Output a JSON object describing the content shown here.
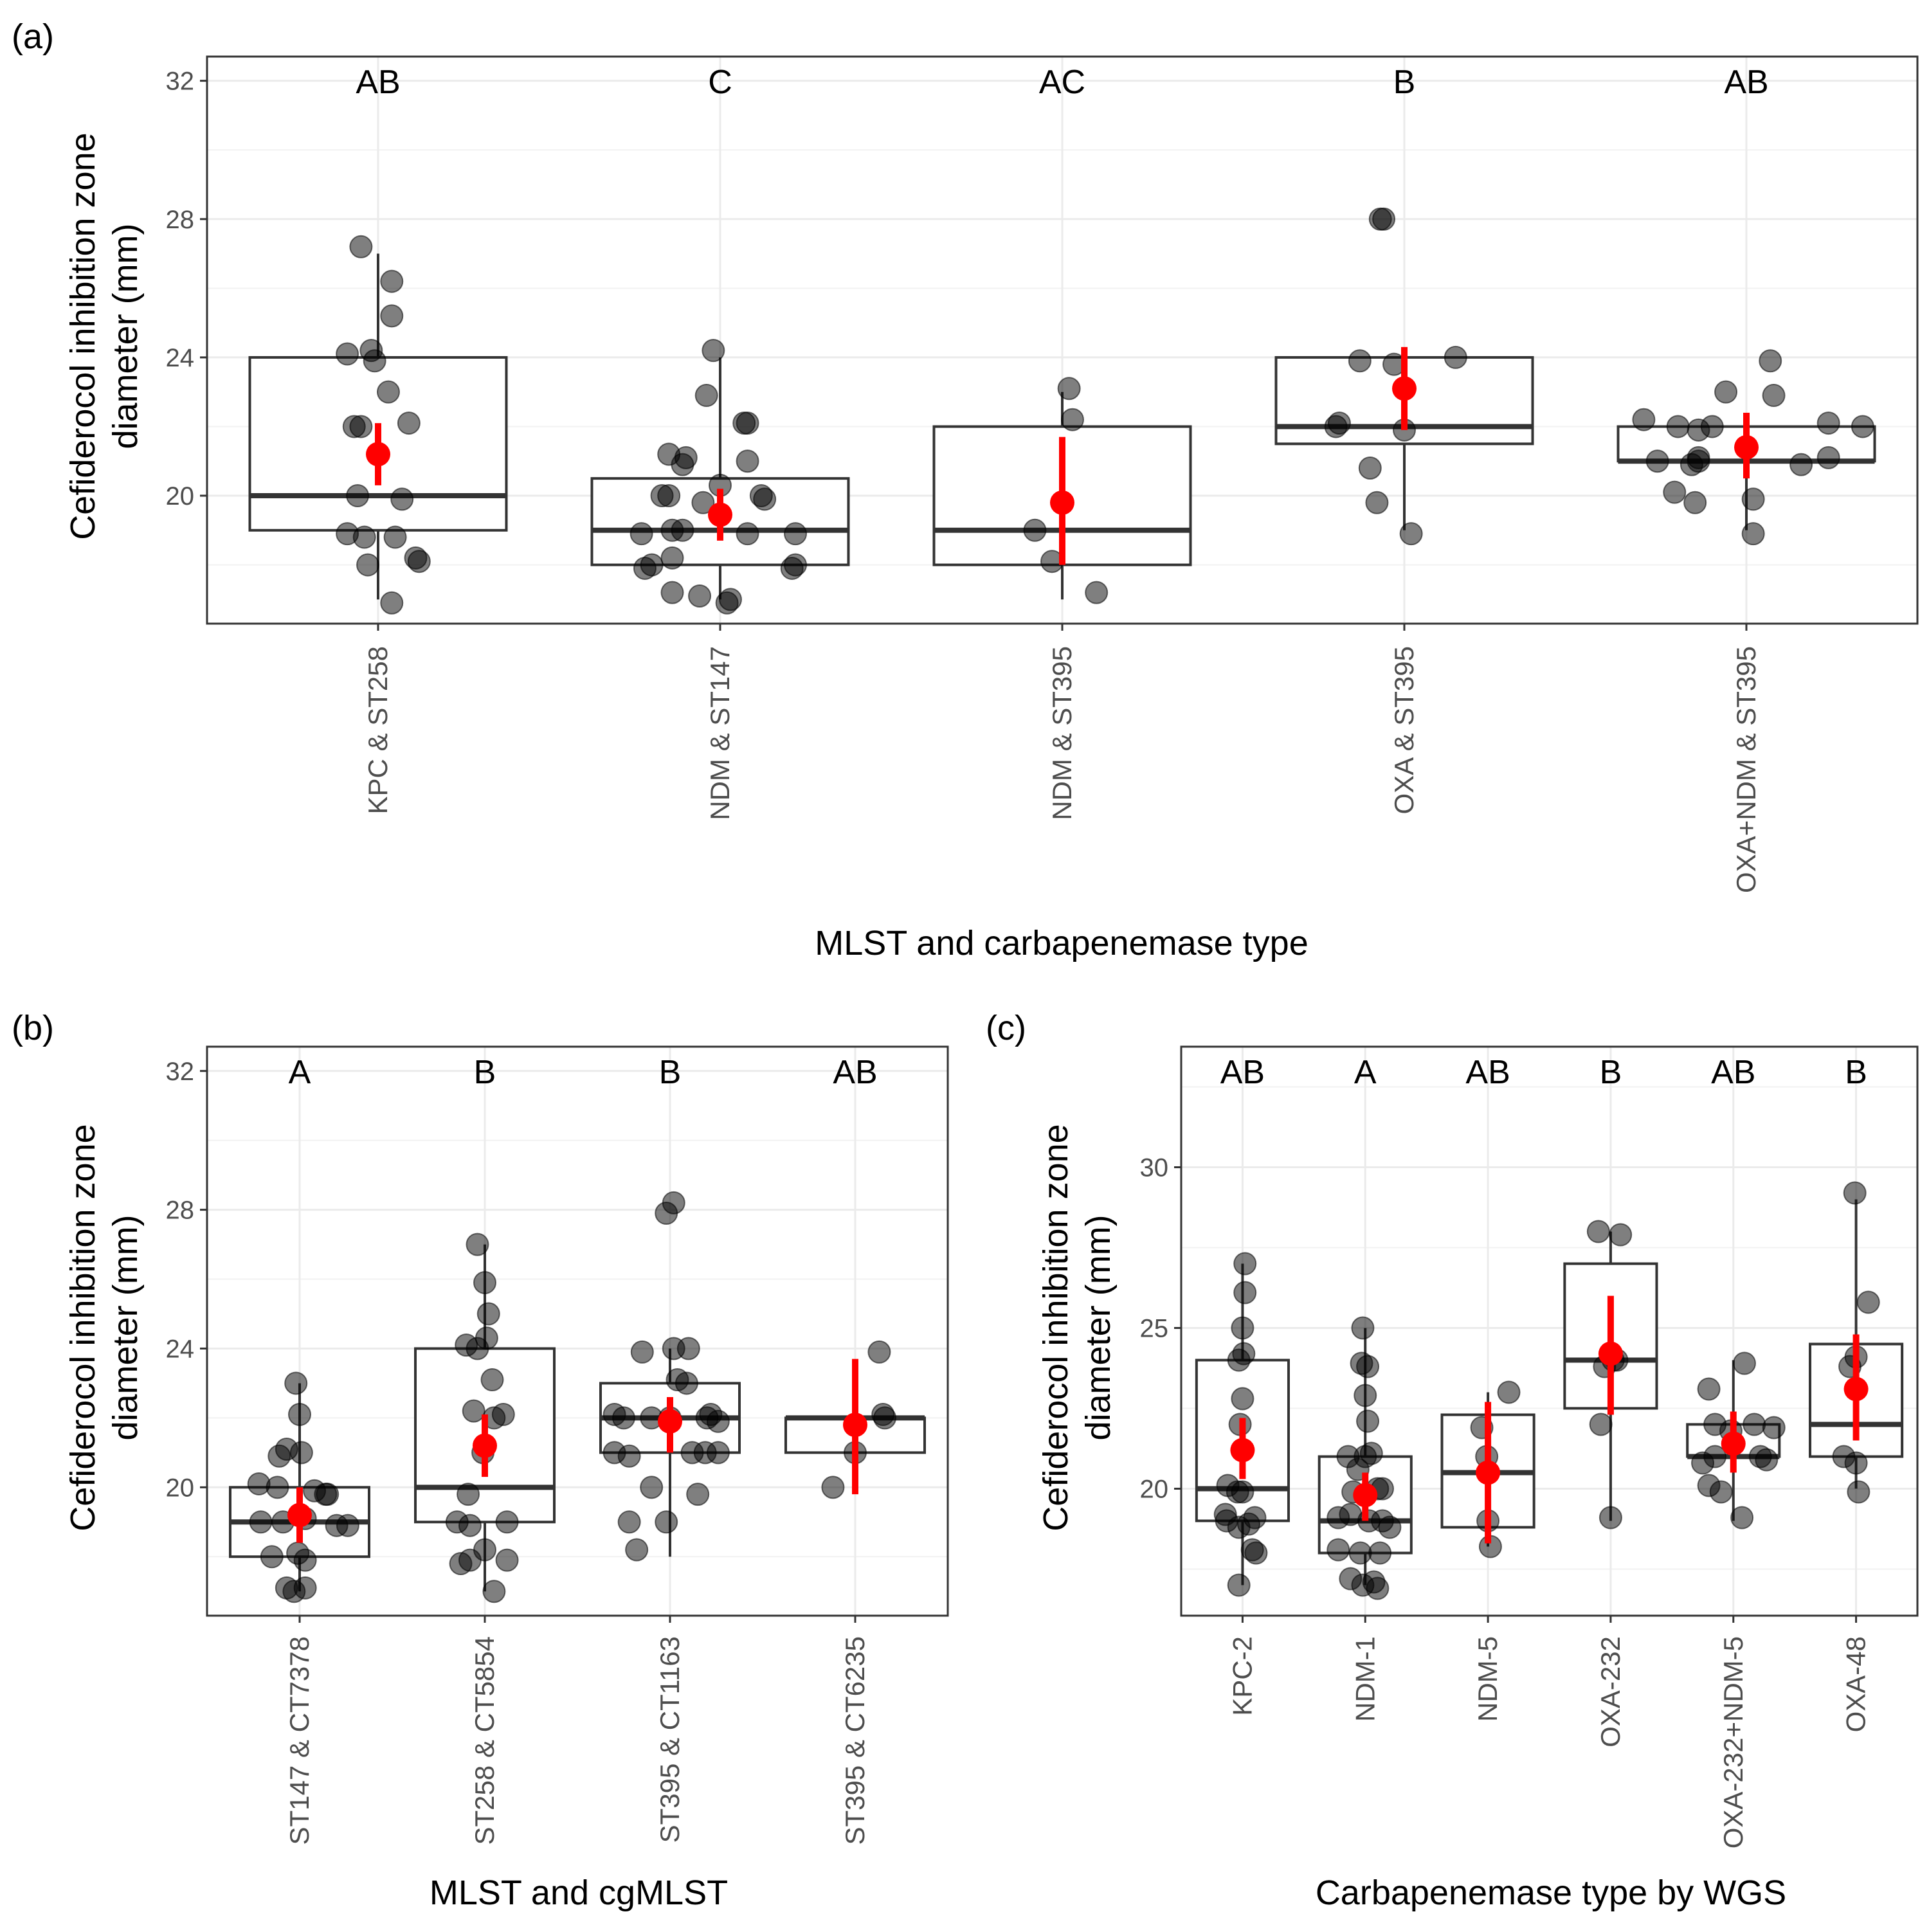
{
  "chart_data": [
    {
      "id": "a",
      "type": "boxplot",
      "panel_label": "(a)",
      "xlabel": "MLST and carbapenemase type",
      "ylabel_lines": [
        "Cefiderocol inhibition zone",
        "diameter (mm)"
      ],
      "ylim": [
        16.3,
        32.7
      ],
      "yticks": [
        20,
        24,
        28,
        32
      ],
      "grid": true,
      "categories": [
        "KPC & ST258",
        "NDM & ST147",
        "NDM & ST395",
        "OXA & ST395",
        "OXA+NDM & ST395"
      ],
      "letters": [
        "AB",
        "C",
        "AC",
        "B",
        "AB"
      ],
      "boxes": [
        {
          "whisker_low": 17,
          "q1": 19,
          "median": 20,
          "q3": 24,
          "whisker_high": 27
        },
        {
          "whisker_low": 17,
          "q1": 18,
          "median": 19,
          "q3": 20.5,
          "whisker_high": 24
        },
        {
          "whisker_low": 17,
          "q1": 18,
          "median": 19,
          "q3": 22,
          "whisker_high": 23
        },
        {
          "whisker_low": 19,
          "q1": 21.5,
          "median": 22,
          "q3": 24,
          "whisker_high": 24
        },
        {
          "whisker_low": 19,
          "q1": 21,
          "median": 21,
          "q3": 22,
          "whisker_high": 22
        }
      ],
      "mean_ci": [
        {
          "mean": 21.2,
          "low": 20.3,
          "high": 22.1
        },
        {
          "mean": 19.45,
          "low": 18.7,
          "high": 20.2
        },
        {
          "mean": 19.8,
          "low": 18.0,
          "high": 21.7
        },
        {
          "mean": 23.1,
          "low": 21.9,
          "high": 24.3
        },
        {
          "mean": 21.4,
          "low": 20.5,
          "high": 22.4
        }
      ],
      "points": [
        [
          [
            -0.05,
            27.2
          ],
          [
            0.04,
            26.2
          ],
          [
            0.04,
            25.2
          ],
          [
            -0.09,
            24.1
          ],
          [
            -0.02,
            24.2
          ],
          [
            -0.01,
            23.9
          ],
          [
            0.03,
            23.0
          ],
          [
            -0.07,
            22.0
          ],
          [
            -0.05,
            22.0
          ],
          [
            0.09,
            22.1
          ],
          [
            -0.06,
            20.0
          ],
          [
            0.07,
            19.9
          ],
          [
            -0.09,
            18.9
          ],
          [
            -0.04,
            18.8
          ],
          [
            0.05,
            18.8
          ],
          [
            0.11,
            18.2
          ],
          [
            0.12,
            18.1
          ],
          [
            -0.03,
            18.0
          ],
          [
            0.04,
            16.9
          ]
        ],
        [
          [
            -0.02,
            24.2
          ],
          [
            -0.04,
            22.9
          ],
          [
            0.07,
            22.1
          ],
          [
            0.08,
            22.1
          ],
          [
            -0.15,
            21.2
          ],
          [
            -0.1,
            21.1
          ],
          [
            -0.11,
            20.9
          ],
          [
            0.08,
            21.0
          ],
          [
            -0.15,
            20.0
          ],
          [
            -0.17,
            20.0
          ],
          [
            0.0,
            20.3
          ],
          [
            0.12,
            20.0
          ],
          [
            0.13,
            19.9
          ],
          [
            -0.05,
            19.8
          ],
          [
            -0.23,
            18.9
          ],
          [
            -0.14,
            19.0
          ],
          [
            -0.11,
            19.0
          ],
          [
            0.08,
            18.9
          ],
          [
            0.22,
            18.9
          ],
          [
            -0.2,
            18.0
          ],
          [
            -0.22,
            17.9
          ],
          [
            -0.14,
            18.2
          ],
          [
            0.22,
            18.0
          ],
          [
            0.21,
            17.9
          ],
          [
            -0.14,
            17.2
          ],
          [
            -0.06,
            17.1
          ],
          [
            0.02,
            16.9
          ],
          [
            0.03,
            17.0
          ]
        ],
        [
          [
            0.02,
            23.1
          ],
          [
            0.03,
            22.2
          ],
          [
            -0.08,
            19.0
          ],
          [
            -0.03,
            18.1
          ],
          [
            0.1,
            17.2
          ]
        ],
        [
          [
            -0.07,
            28.0
          ],
          [
            -0.06,
            28.0
          ],
          [
            -0.13,
            23.9
          ],
          [
            -0.03,
            23.8
          ],
          [
            0.15,
            24.0
          ],
          [
            -0.19,
            22.1
          ],
          [
            -0.2,
            22.0
          ],
          [
            0.0,
            21.9
          ],
          [
            -0.1,
            20.8
          ],
          [
            -0.08,
            19.8
          ],
          [
            0.02,
            18.9
          ]
        ],
        [
          [
            0.07,
            23.9
          ],
          [
            -0.06,
            23.0
          ],
          [
            0.08,
            22.9
          ],
          [
            -0.3,
            22.2
          ],
          [
            -0.2,
            22.0
          ],
          [
            -0.14,
            21.9
          ],
          [
            -0.1,
            22.0
          ],
          [
            -0.14,
            21.1
          ],
          [
            0.24,
            22.1
          ],
          [
            0.34,
            22.0
          ],
          [
            -0.14,
            21.0
          ],
          [
            -0.26,
            21.0
          ],
          [
            -0.16,
            20.9
          ],
          [
            0.24,
            21.1
          ],
          [
            0.16,
            20.9
          ],
          [
            -0.21,
            20.1
          ],
          [
            0.02,
            19.9
          ],
          [
            -0.15,
            19.8
          ],
          [
            0.02,
            18.9
          ]
        ]
      ]
    },
    {
      "id": "b",
      "type": "boxplot",
      "panel_label": "(b)",
      "xlabel": "MLST and cgMLST",
      "ylabel_lines": [
        "Cefiderocol inhibition zone",
        "diameter (mm)"
      ],
      "ylim": [
        16.3,
        32.7
      ],
      "yticks": [
        20,
        24,
        28,
        32
      ],
      "grid": true,
      "categories": [
        "ST147 & CT7378",
        "ST258 & CT5854",
        "ST395 & CT1163",
        "ST395 & CT6235"
      ],
      "letters": [
        "A",
        "B",
        "B",
        "AB"
      ],
      "boxes": [
        {
          "whisker_low": 17,
          "q1": 18,
          "median": 19,
          "q3": 20,
          "whisker_high": 23
        },
        {
          "whisker_low": 17,
          "q1": 19,
          "median": 20,
          "q3": 24,
          "whisker_high": 27
        },
        {
          "whisker_low": 18,
          "q1": 21,
          "median": 22,
          "q3": 23,
          "whisker_high": 24
        },
        {
          "whisker_low": 20,
          "q1": 21,
          "median": 22,
          "q3": 22,
          "whisker_high": 22
        }
      ],
      "mean_ci": [
        {
          "mean": 19.2,
          "low": 18.4,
          "high": 20.0
        },
        {
          "mean": 21.2,
          "low": 20.3,
          "high": 22.1
        },
        {
          "mean": 21.9,
          "low": 21.0,
          "high": 22.6
        },
        {
          "mean": 21.8,
          "low": 19.8,
          "high": 23.7
        }
      ],
      "points": [
        [
          [
            -0.02,
            23.0
          ],
          [
            0.0,
            22.1
          ],
          [
            -0.11,
            20.9
          ],
          [
            -0.07,
            21.1
          ],
          [
            0.01,
            21.0
          ],
          [
            -0.22,
            20.1
          ],
          [
            -0.12,
            20.0
          ],
          [
            0.08,
            19.9
          ],
          [
            0.14,
            19.8
          ],
          [
            0.15,
            19.8
          ],
          [
            -0.21,
            19.0
          ],
          [
            -0.09,
            19.0
          ],
          [
            0.03,
            19.1
          ],
          [
            0.2,
            18.9
          ],
          [
            0.26,
            18.9
          ],
          [
            -0.15,
            18.0
          ],
          [
            -0.01,
            18.1
          ],
          [
            0.03,
            17.9
          ],
          [
            -0.07,
            17.1
          ],
          [
            -0.03,
            17.0
          ],
          [
            0.03,
            17.1
          ]
        ],
        [
          [
            -0.04,
            27.0
          ],
          [
            0.0,
            25.9
          ],
          [
            0.02,
            25.0
          ],
          [
            0.01,
            24.3
          ],
          [
            -0.1,
            24.1
          ],
          [
            -0.04,
            24.0
          ],
          [
            0.04,
            23.1
          ],
          [
            -0.06,
            22.2
          ],
          [
            0.05,
            22.0
          ],
          [
            0.1,
            22.1
          ],
          [
            -0.01,
            21.0
          ],
          [
            -0.09,
            19.8
          ],
          [
            -0.15,
            19.0
          ],
          [
            -0.08,
            18.9
          ],
          [
            0.12,
            19.0
          ],
          [
            0.0,
            18.2
          ],
          [
            -0.08,
            17.9
          ],
          [
            -0.13,
            17.8
          ],
          [
            0.12,
            17.9
          ],
          [
            0.05,
            17.0
          ]
        ],
        [
          [
            -0.02,
            27.9
          ],
          [
            0.02,
            28.2
          ],
          [
            -0.15,
            23.9
          ],
          [
            0.02,
            24.0
          ],
          [
            0.1,
            24.0
          ],
          [
            0.04,
            23.1
          ],
          [
            0.09,
            23.0
          ],
          [
            -0.1,
            22.0
          ],
          [
            -0.3,
            22.1
          ],
          [
            -0.25,
            22.0
          ],
          [
            0.0,
            22.0
          ],
          [
            0.2,
            22.0
          ],
          [
            0.26,
            21.9
          ],
          [
            0.22,
            22.1
          ],
          [
            -0.3,
            21.0
          ],
          [
            -0.22,
            20.9
          ],
          [
            0.12,
            21.0
          ],
          [
            0.19,
            21.0
          ],
          [
            0.26,
            21.0
          ],
          [
            0.15,
            19.8
          ],
          [
            -0.1,
            20.0
          ],
          [
            -0.22,
            19.0
          ],
          [
            -0.02,
            19.0
          ],
          [
            -0.18,
            18.2
          ]
        ],
        [
          [
            0.13,
            23.9
          ],
          [
            0.15,
            22.1
          ],
          [
            0.16,
            22.0
          ],
          [
            0.0,
            21.0
          ],
          [
            -0.12,
            20.0
          ]
        ]
      ]
    },
    {
      "id": "c",
      "type": "boxplot",
      "panel_label": "(c)",
      "xlabel": "Carbapenemase type by WGS",
      "ylabel_lines": [
        "Cefiderocol inhibition zone",
        "diameter (mm)"
      ],
      "ylim": [
        16.05,
        33.75
      ],
      "yticks": [
        20,
        25,
        30
      ],
      "grid": true,
      "categories": [
        "KPC-2",
        "NDM-1",
        "NDM-5",
        "OXA-232",
        "OXA-232+NDM-5",
        "OXA-48"
      ],
      "letters": [
        "AB",
        "A",
        "AB",
        "B",
        "AB",
        "B"
      ],
      "boxes": [
        {
          "whisker_low": 17,
          "q1": 19,
          "median": 20,
          "q3": 24,
          "whisker_high": 27
        },
        {
          "whisker_low": 17,
          "q1": 18,
          "median": 19,
          "q3": 21,
          "whisker_high": 25
        },
        {
          "whisker_low": 18.2,
          "q1": 18.8,
          "median": 20.5,
          "q3": 22.3,
          "whisker_high": 23
        },
        {
          "whisker_low": 19,
          "q1": 22.5,
          "median": 24,
          "q3": 27,
          "whisker_high": 28
        },
        {
          "whisker_low": 19,
          "q1": 21,
          "median": 21,
          "q3": 22,
          "whisker_high": 24
        },
        {
          "whisker_low": 20,
          "q1": 21,
          "median": 22,
          "q3": 24.5,
          "whisker_high": 29
        }
      ],
      "mean_ci": [
        {
          "mean": 21.2,
          "low": 20.3,
          "high": 22.2
        },
        {
          "mean": 19.8,
          "low": 19.0,
          "high": 20.5
        },
        {
          "mean": 20.5,
          "low": 18.3,
          "high": 22.7
        },
        {
          "mean": 24.2,
          "low": 22.3,
          "high": 26.0
        },
        {
          "mean": 21.4,
          "low": 20.5,
          "high": 22.4
        },
        {
          "mean": 23.1,
          "low": 21.5,
          "high": 24.8
        }
      ],
      "points": [
        [
          [
            0.02,
            27.0
          ],
          [
            0.02,
            26.1
          ],
          [
            0.0,
            25.0
          ],
          [
            -0.03,
            24.0
          ],
          [
            0.01,
            24.2
          ],
          [
            0.0,
            22.8
          ],
          [
            -0.02,
            22.0
          ],
          [
            -0.12,
            20.1
          ],
          [
            -0.04,
            19.9
          ],
          [
            0.0,
            19.9
          ],
          [
            -0.14,
            19.2
          ],
          [
            -0.13,
            19.0
          ],
          [
            0.1,
            19.1
          ],
          [
            0.05,
            18.9
          ],
          [
            -0.03,
            18.8
          ],
          [
            0.08,
            18.1
          ],
          [
            0.11,
            18.0
          ],
          [
            -0.03,
            17.0
          ]
        ],
        [
          [
            -0.02,
            25.0
          ],
          [
            -0.03,
            23.9
          ],
          [
            0.02,
            23.8
          ],
          [
            0.0,
            22.9
          ],
          [
            0.02,
            22.1
          ],
          [
            -0.14,
            21.0
          ],
          [
            0.0,
            21.0
          ],
          [
            0.05,
            21.1
          ],
          [
            -0.06,
            20.6
          ],
          [
            0.1,
            20.0
          ],
          [
            0.14,
            20.0
          ],
          [
            -0.1,
            19.9
          ],
          [
            -0.22,
            19.1
          ],
          [
            -0.12,
            19.2
          ],
          [
            0.03,
            19.0
          ],
          [
            0.14,
            19.0
          ],
          [
            0.2,
            18.8
          ],
          [
            -0.22,
            18.1
          ],
          [
            -0.04,
            18.0
          ],
          [
            0.12,
            18.0
          ],
          [
            -0.12,
            17.2
          ],
          [
            0.07,
            17.1
          ],
          [
            -0.02,
            17.0
          ],
          [
            0.1,
            16.9
          ]
        ],
        [
          [
            0.17,
            23.0
          ],
          [
            -0.05,
            21.9
          ],
          [
            -0.01,
            21.0
          ],
          [
            0.0,
            19.0
          ],
          [
            0.02,
            18.2
          ]
        ],
        [
          [
            -0.1,
            28.0
          ],
          [
            0.08,
            27.9
          ],
          [
            0.02,
            24.0
          ],
          [
            -0.05,
            23.8
          ],
          [
            0.05,
            24.0
          ],
          [
            -0.08,
            22.0
          ],
          [
            0.0,
            19.1
          ]
        ],
        [
          [
            0.09,
            23.9
          ],
          [
            -0.2,
            23.1
          ],
          [
            -0.15,
            22.0
          ],
          [
            0.17,
            22.0
          ],
          [
            0.33,
            21.9
          ],
          [
            -0.02,
            21.8
          ],
          [
            -0.15,
            21.0
          ],
          [
            0.22,
            21.0
          ],
          [
            -0.25,
            20.8
          ],
          [
            0.27,
            20.9
          ],
          [
            -0.2,
            20.1
          ],
          [
            -0.1,
            19.9
          ],
          [
            0.07,
            19.1
          ]
        ],
        [
          [
            -0.01,
            29.2
          ],
          [
            0.1,
            25.8
          ],
          [
            0.0,
            24.1
          ],
          [
            -0.05,
            23.8
          ],
          [
            -0.1,
            21.0
          ],
          [
            0.0,
            20.8
          ],
          [
            0.02,
            19.9
          ]
        ]
      ]
    }
  ]
}
